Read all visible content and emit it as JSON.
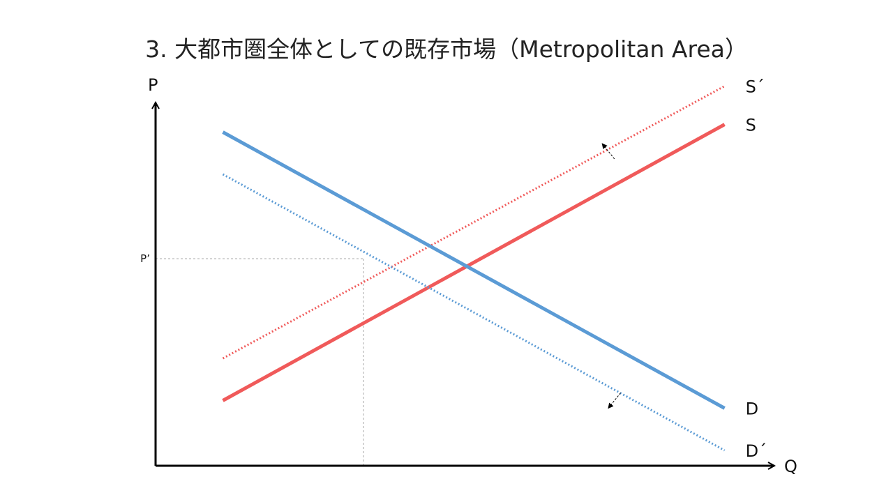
{
  "chart_data": {
    "type": "line",
    "title": "3. 大都市圏全体としての既存市場（Metropolitan Area）",
    "xlabel": "Q",
    "ylabel": "P",
    "xlim": [
      0,
      10
    ],
    "ylim": [
      0,
      10
    ],
    "grid": false,
    "legend": "none",
    "series": [
      {
        "name": "S´",
        "style": "dotted",
        "color": "#f05a5a",
        "x": [
          1.1,
          9.3
        ],
        "y": [
          2.8,
          9.9
        ]
      },
      {
        "name": "S",
        "style": "solid",
        "color": "#f05a5a",
        "x": [
          1.1,
          9.3
        ],
        "y": [
          1.7,
          8.9
        ]
      },
      {
        "name": "D",
        "style": "solid",
        "color": "#5b9bd5",
        "x": [
          1.1,
          9.3
        ],
        "y": [
          8.7,
          1.5
        ]
      },
      {
        "name": "D´",
        "style": "dotted",
        "color": "#5b9bd5",
        "x": [
          1.1,
          9.3
        ],
        "y": [
          7.6,
          0.4
        ]
      }
    ],
    "reference": {
      "label": "P’",
      "x": 3.4,
      "y": 5.4
    },
    "shift_arrows": [
      {
        "from": [
          7.5,
          8.0
        ],
        "to": [
          7.3,
          8.4
        ]
      },
      {
        "from": [
          7.6,
          1.9
        ],
        "to": [
          7.4,
          1.5
        ]
      }
    ]
  }
}
